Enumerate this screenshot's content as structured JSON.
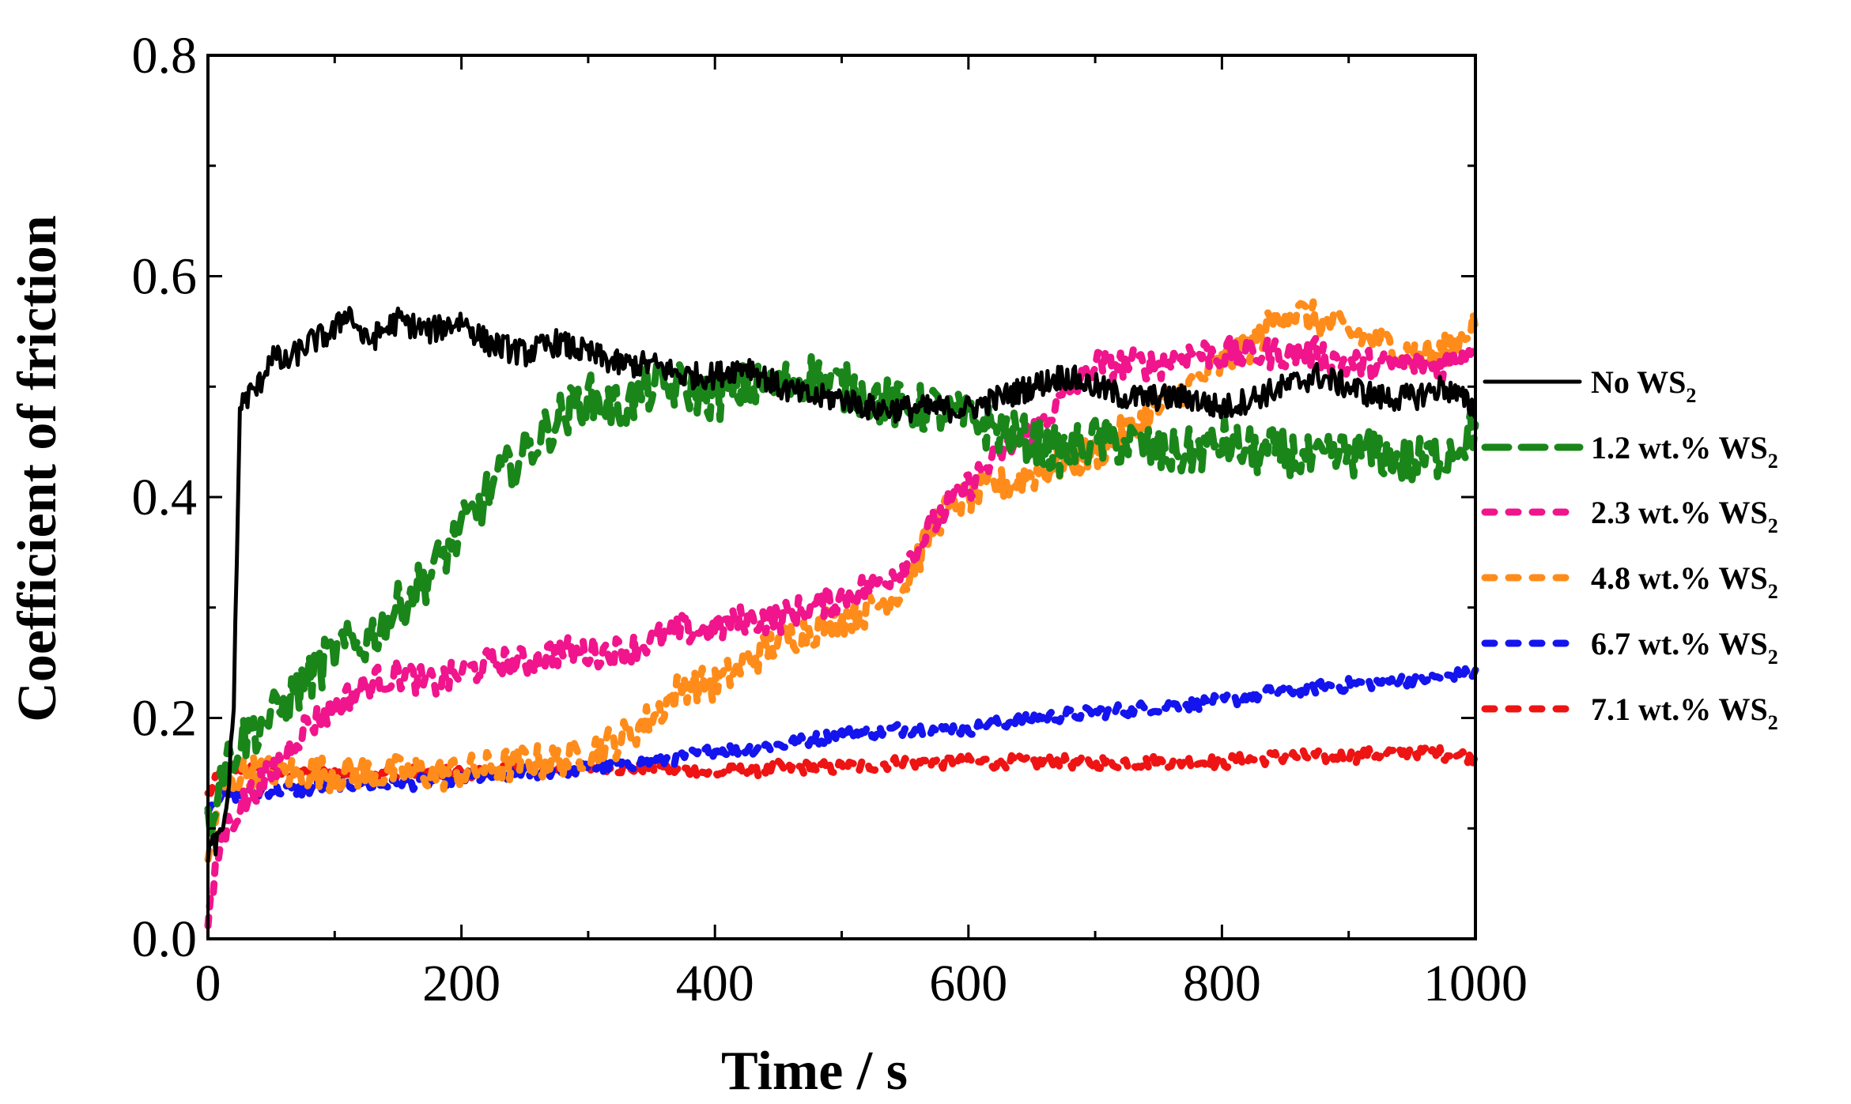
{
  "chart_data": {
    "type": "line",
    "title": "",
    "xlabel": "Time / s",
    "ylabel": "Coefficient of friction",
    "xlim": [
      0,
      1000
    ],
    "ylim": [
      0.0,
      0.8
    ],
    "x_ticks": [
      0,
      200,
      400,
      600,
      800,
      1000
    ],
    "x_tick_labels": [
      "0",
      "200",
      "400",
      "600",
      "800",
      "1000"
    ],
    "y_ticks": [
      0.0,
      0.2,
      0.4,
      0.6,
      0.8
    ],
    "y_tick_labels": [
      "0.0",
      "0.2",
      "0.4",
      "0.6",
      "0.8"
    ],
    "grid": false,
    "legend_position": "right",
    "series": [
      {
        "name": "No WS2",
        "label_main": "No WS",
        "label_sub": "2",
        "color": "#000000",
        "style": "solid",
        "x": [
          0,
          10,
          15,
          20,
          23,
          25,
          30,
          40,
          50,
          60,
          80,
          100,
          110,
          125,
          150,
          175,
          200,
          220,
          250,
          275,
          300,
          325,
          350,
          375,
          400,
          425,
          450,
          475,
          500,
          525,
          550,
          575,
          600,
          625,
          650,
          675,
          700,
          725,
          750,
          775,
          800,
          825,
          850,
          875,
          900,
          925,
          950,
          975,
          1000
        ],
        "y": [
          0.08,
          0.09,
          0.12,
          0.2,
          0.35,
          0.48,
          0.49,
          0.5,
          0.53,
          0.52,
          0.54,
          0.55,
          0.57,
          0.54,
          0.56,
          0.55,
          0.56,
          0.54,
          0.53,
          0.54,
          0.53,
          0.52,
          0.52,
          0.51,
          0.51,
          0.52,
          0.5,
          0.49,
          0.49,
          0.48,
          0.48,
          0.48,
          0.48,
          0.49,
          0.5,
          0.51,
          0.5,
          0.49,
          0.49,
          0.49,
          0.48,
          0.49,
          0.5,
          0.51,
          0.5,
          0.49,
          0.49,
          0.5,
          0.48
        ]
      },
      {
        "name": "1.2 wt.% WS2",
        "label_main": "1.2 wt.% WS",
        "label_sub": "2",
        "color": "#1a861a",
        "style": "dashed",
        "x": [
          0,
          10,
          25,
          50,
          75,
          100,
          125,
          150,
          175,
          200,
          225,
          250,
          275,
          300,
          325,
          350,
          375,
          400,
          425,
          450,
          475,
          500,
          525,
          550,
          575,
          600,
          625,
          650,
          675,
          700,
          725,
          750,
          775,
          800,
          825,
          850,
          875,
          900,
          925,
          950,
          975,
          1000
        ],
        "y": [
          0.1,
          0.15,
          0.18,
          0.2,
          0.23,
          0.26,
          0.27,
          0.3,
          0.33,
          0.37,
          0.41,
          0.44,
          0.47,
          0.49,
          0.48,
          0.5,
          0.5,
          0.49,
          0.5,
          0.5,
          0.51,
          0.5,
          0.49,
          0.48,
          0.48,
          0.47,
          0.46,
          0.45,
          0.44,
          0.45,
          0.45,
          0.44,
          0.44,
          0.45,
          0.44,
          0.44,
          0.43,
          0.44,
          0.44,
          0.43,
          0.44,
          0.46
        ]
      },
      {
        "name": "2.3 wt.% WS2",
        "label_main": "2.3 wt.% WS",
        "label_sub": "2",
        "color": "#f0158c",
        "style": "dotted",
        "x": [
          0,
          5,
          10,
          25,
          50,
          75,
          100,
          125,
          150,
          175,
          200,
          225,
          250,
          275,
          300,
          325,
          350,
          375,
          400,
          425,
          450,
          475,
          500,
          525,
          550,
          575,
          600,
          625,
          650,
          675,
          700,
          725,
          750,
          775,
          800,
          825,
          850,
          875,
          900,
          925,
          950,
          975,
          1000
        ],
        "y": [
          0.01,
          0.05,
          0.09,
          0.12,
          0.15,
          0.19,
          0.21,
          0.23,
          0.24,
          0.23,
          0.24,
          0.25,
          0.25,
          0.26,
          0.26,
          0.26,
          0.27,
          0.28,
          0.28,
          0.29,
          0.29,
          0.3,
          0.31,
          0.32,
          0.34,
          0.38,
          0.41,
          0.44,
          0.46,
          0.49,
          0.52,
          0.52,
          0.52,
          0.53,
          0.53,
          0.53,
          0.53,
          0.53,
          0.52,
          0.52,
          0.52,
          0.52,
          0.54
        ]
      },
      {
        "name": "4.8 wt.% WS2",
        "label_main": "4.8 wt.% WS",
        "label_sub": "2",
        "color": "#ff8c1a",
        "style": "dotted",
        "x": [
          0,
          10,
          25,
          50,
          100,
          150,
          200,
          250,
          275,
          300,
          325,
          350,
          375,
          400,
          425,
          450,
          475,
          500,
          525,
          550,
          575,
          600,
          625,
          650,
          675,
          700,
          725,
          750,
          775,
          800,
          825,
          850,
          875,
          900,
          925,
          950,
          975,
          1000
        ],
        "y": [
          0.07,
          0.13,
          0.15,
          0.15,
          0.15,
          0.15,
          0.15,
          0.16,
          0.16,
          0.17,
          0.18,
          0.2,
          0.23,
          0.23,
          0.25,
          0.27,
          0.28,
          0.29,
          0.3,
          0.32,
          0.38,
          0.4,
          0.41,
          0.42,
          0.43,
          0.44,
          0.46,
          0.48,
          0.5,
          0.52,
          0.54,
          0.57,
          0.56,
          0.55,
          0.54,
          0.53,
          0.53,
          0.56
        ]
      },
      {
        "name": "6.7 wt.% WS2",
        "label_main": "6.7 wt.% WS",
        "label_sub": "2",
        "color": "#1414ee",
        "style": "dotted",
        "x": [
          0,
          10,
          25,
          50,
          75,
          100,
          150,
          200,
          250,
          300,
          350,
          400,
          450,
          500,
          550,
          600,
          650,
          700,
          750,
          800,
          850,
          900,
          950,
          1000
        ],
        "y": [
          0.12,
          0.13,
          0.13,
          0.135,
          0.135,
          0.14,
          0.14,
          0.145,
          0.15,
          0.155,
          0.16,
          0.17,
          0.175,
          0.185,
          0.19,
          0.19,
          0.2,
          0.205,
          0.21,
          0.215,
          0.225,
          0.23,
          0.235,
          0.24
        ]
      },
      {
        "name": "7.1 wt.% WS2",
        "label_main": "7.1 wt.% WS",
        "label_sub": "2",
        "color": "#ee1414",
        "style": "dotted",
        "x": [
          0,
          10,
          25,
          50,
          75,
          100,
          150,
          200,
          250,
          300,
          350,
          400,
          450,
          500,
          550,
          600,
          650,
          700,
          750,
          800,
          850,
          900,
          950,
          1000
        ],
        "y": [
          0.13,
          0.15,
          0.155,
          0.15,
          0.15,
          0.15,
          0.15,
          0.15,
          0.155,
          0.155,
          0.155,
          0.15,
          0.155,
          0.155,
          0.16,
          0.16,
          0.16,
          0.16,
          0.16,
          0.16,
          0.165,
          0.165,
          0.17,
          0.165
        ]
      }
    ]
  }
}
